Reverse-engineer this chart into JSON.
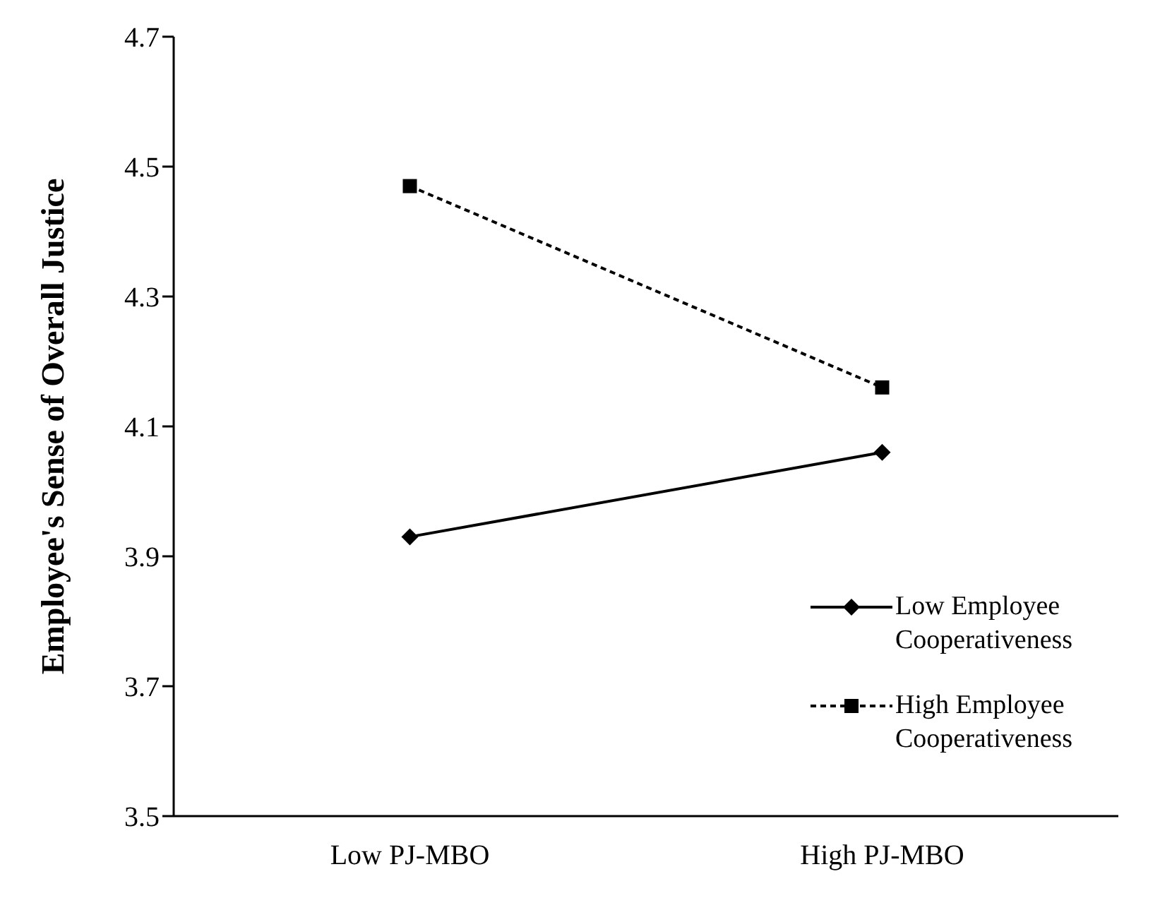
{
  "chart_data": {
    "type": "line",
    "ylabel": "Employee's Sense of Overall Justice",
    "categories": [
      "Low PJ-MBO",
      "High PJ-MBO"
    ],
    "series": [
      {
        "name": "Low Employee Cooperativeness",
        "color": "#000000",
        "values": [
          3.93,
          4.06
        ],
        "marker": "diamond",
        "line_style": "solid"
      },
      {
        "name": "High Employee Cooperativeness",
        "color": "#000000",
        "values": [
          4.47,
          4.16
        ],
        "marker": "square",
        "line_style": "dashed"
      }
    ],
    "ylim": [
      3.5,
      4.7
    ],
    "yticks": [
      3.5,
      3.7,
      3.9,
      4.1,
      4.3,
      4.5,
      4.7
    ],
    "grid": false,
    "legend": "bottom right"
  }
}
